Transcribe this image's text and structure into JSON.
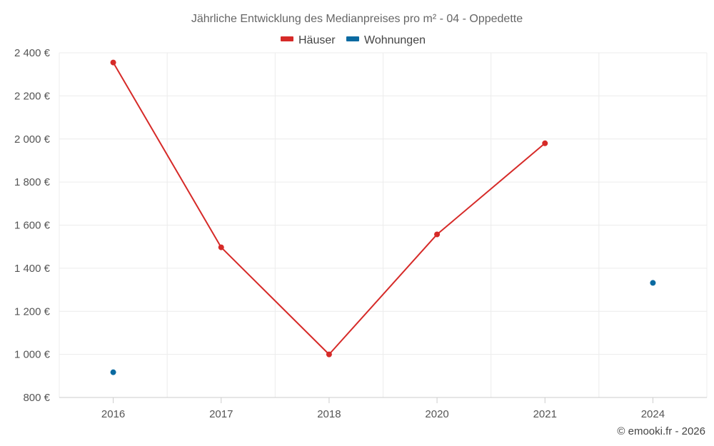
{
  "chart_data": {
    "type": "line",
    "title": "Jährliche Entwicklung des Medianpreises pro m² - 04 - Oppedette",
    "categories": [
      "2016",
      "2017",
      "2018",
      "2020",
      "2021",
      "2024"
    ],
    "y_ticks": [
      "800 €",
      "1 000 €",
      "1 200 €",
      "1 400 €",
      "1 600 €",
      "1 800 €",
      "2 000 €",
      "2 200 €",
      "2 400 €"
    ],
    "ylim": [
      800,
      2400
    ],
    "grid": true,
    "legend_position": "top-center",
    "series": [
      {
        "name": "Häuser",
        "color": "#d62a28",
        "values": [
          2355,
          1497,
          1000,
          1557,
          1980,
          null
        ]
      },
      {
        "name": "Wohnungen",
        "color": "#0a6aa1",
        "values": [
          917,
          null,
          null,
          null,
          null,
          1332
        ]
      }
    ],
    "credit": "© emooki.fr - 2026"
  }
}
